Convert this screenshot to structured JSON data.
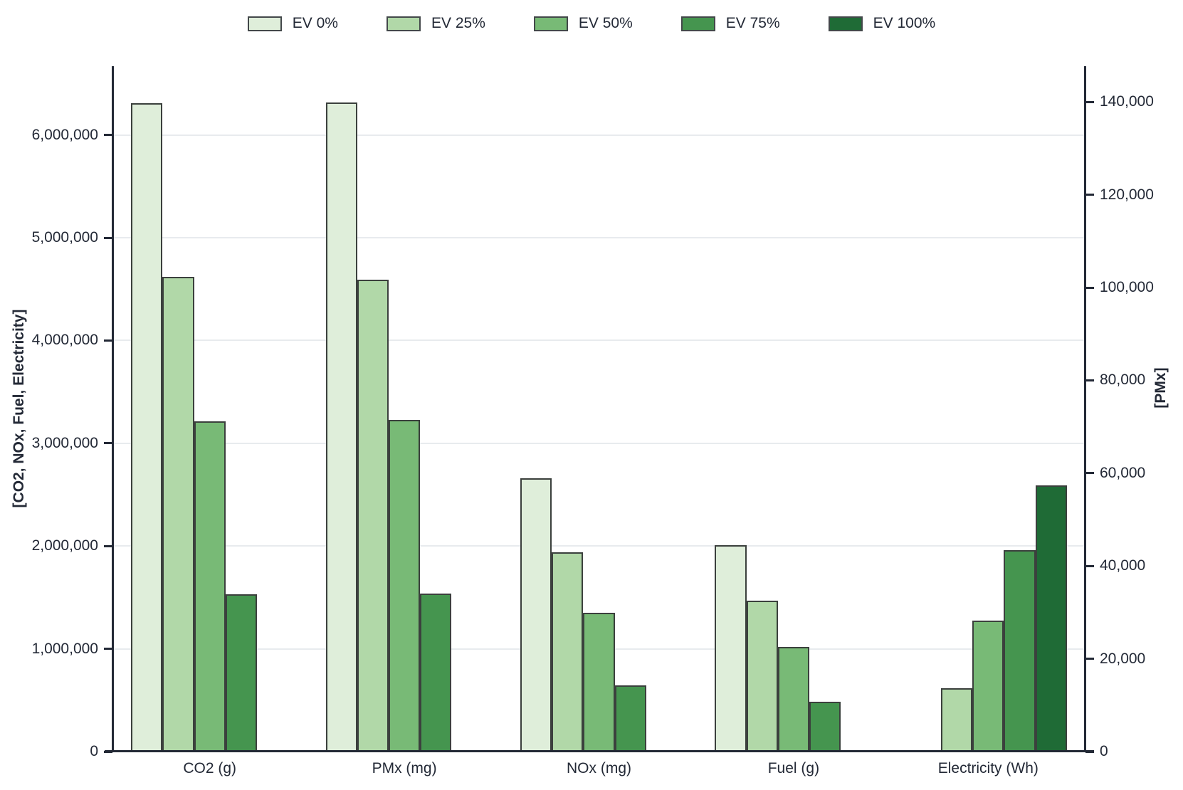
{
  "chart_data": {
    "type": "bar",
    "title": "",
    "left_axis_label": "[CO2, NOx, Fuel, Electricity]",
    "right_axis_label": "[PMx]",
    "categories": [
      "CO2 (g)",
      "PMx (mg)",
      "NOx (mg)",
      "Fuel (g)",
      "Electricity (Wh)"
    ],
    "category_axis": [
      "left",
      "right",
      "left",
      "left",
      "left"
    ],
    "series": [
      {
        "name": "EV 0%",
        "color": "#dfeeda",
        "values": [
          6310000,
          139900,
          2660000,
          2010000,
          0
        ]
      },
      {
        "name": "EV 25%",
        "color": "#b1d8a8",
        "values": [
          4620000,
          101700,
          1940000,
          1470000,
          616000
        ]
      },
      {
        "name": "EV 50%",
        "color": "#78ba76",
        "values": [
          3215000,
          71500,
          1353000,
          1016000,
          1276000
        ]
      },
      {
        "name": "EV 75%",
        "color": "#45954f",
        "values": [
          1530000,
          34100,
          642000,
          485000,
          1957000
        ]
      },
      {
        "name": "EV 100%",
        "color": "#1f6b36",
        "values": [
          0,
          0,
          0,
          0,
          2592000
        ]
      }
    ],
    "left_ylim": [
      0,
      6670000
    ],
    "right_ylim": [
      0,
      147700
    ],
    "left_ticks": [
      {
        "value": 0,
        "label": "0"
      },
      {
        "value": 1000000,
        "label": "1,000,000"
      },
      {
        "value": 2000000,
        "label": "2,000,000"
      },
      {
        "value": 3000000,
        "label": "3,000,000"
      },
      {
        "value": 4000000,
        "label": "4,000,000"
      },
      {
        "value": 5000000,
        "label": "5,000,000"
      },
      {
        "value": 6000000,
        "label": "6,000,000"
      }
    ],
    "right_ticks": [
      {
        "value": 0,
        "label": "0"
      },
      {
        "value": 20000,
        "label": "20,000"
      },
      {
        "value": 40000,
        "label": "40,000"
      },
      {
        "value": 60000,
        "label": "60,000"
      },
      {
        "value": 80000,
        "label": "80,000"
      },
      {
        "value": 100000,
        "label": "100,000"
      },
      {
        "value": 120000,
        "label": "120,000"
      },
      {
        "value": 140000,
        "label": "140,000"
      }
    ],
    "grid": true,
    "legend_position": "top"
  }
}
